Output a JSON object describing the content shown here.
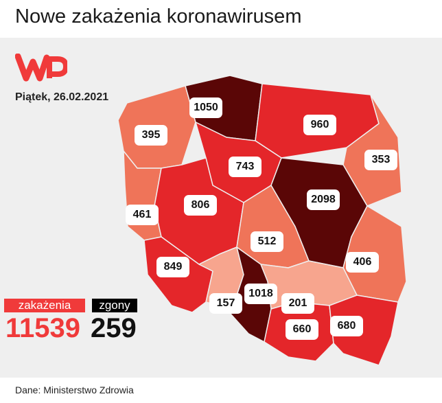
{
  "title": "Nowe zakażenia koronawirusem",
  "logo": "WP",
  "date": "Piątek, 26.02.2021",
  "colors": {
    "maroon": "#5a0606",
    "red": "#e4262a",
    "salmon": "#ef7459",
    "light": "#f7a58e",
    "brand": "#f03a3a"
  },
  "regions": [
    {
      "value": "395",
      "color": "#ef7459"
    },
    {
      "value": "1050",
      "color": "#5a0606"
    },
    {
      "value": "960",
      "color": "#e4262a"
    },
    {
      "value": "353",
      "color": "#ef7459"
    },
    {
      "value": "743",
      "color": "#e4262a"
    },
    {
      "value": "461",
      "color": "#ef7459"
    },
    {
      "value": "806",
      "color": "#e4262a"
    },
    {
      "value": "2098",
      "color": "#5a0606"
    },
    {
      "value": "512",
      "color": "#ef7459"
    },
    {
      "value": "406",
      "color": "#ef7459"
    },
    {
      "value": "849",
      "color": "#e4262a"
    },
    {
      "value": "157",
      "color": "#f7a58e"
    },
    {
      "value": "1018",
      "color": "#5a0606"
    },
    {
      "value": "201",
      "color": "#f7a58e"
    },
    {
      "value": "660",
      "color": "#e4262a"
    },
    {
      "value": "680",
      "color": "#e4262a"
    }
  ],
  "totals": {
    "cases_label": "zakażenia",
    "cases": "11539",
    "deaths_label": "zgony",
    "deaths": "259"
  },
  "source": "Dane: Ministerstwo Zdrowia"
}
